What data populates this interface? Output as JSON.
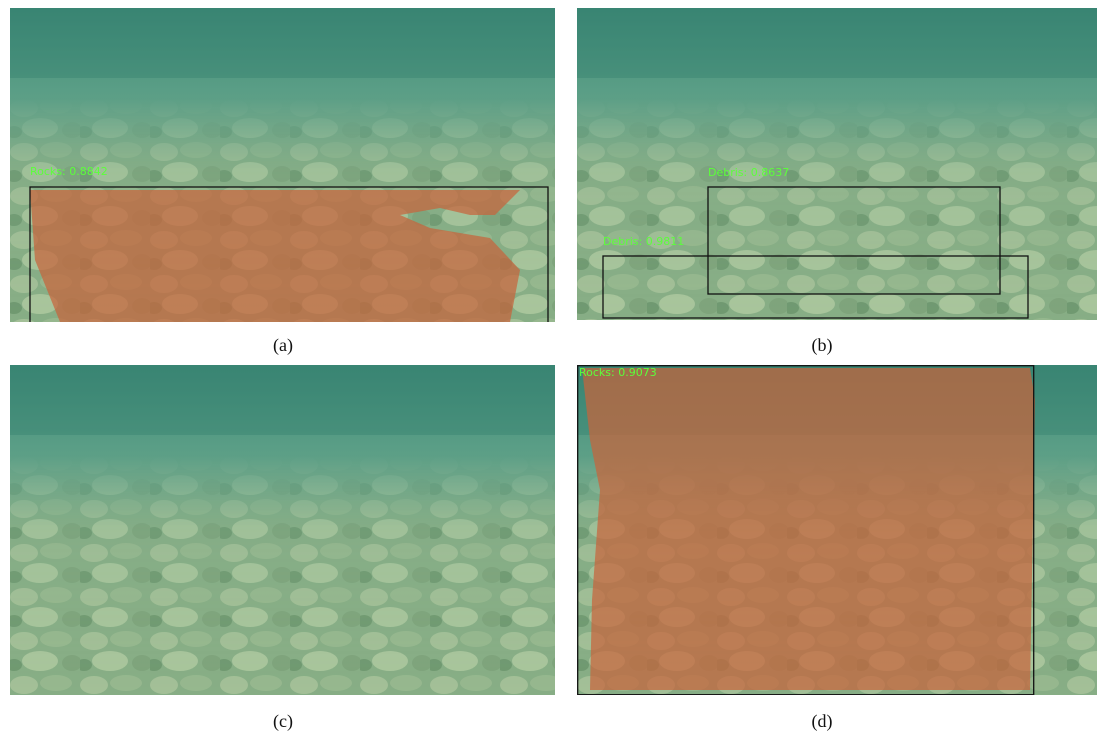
{
  "panels": [
    {
      "caption": "(a)",
      "detections": [
        {
          "label": "Rocks: 0.8842"
        }
      ]
    },
    {
      "caption": "(b)",
      "detections": [
        {
          "label": "Debris: 0.8637"
        },
        {
          "label": "Debris: 0.9811"
        }
      ]
    },
    {
      "caption": "(c)",
      "detections": []
    },
    {
      "caption": "(d)",
      "detections": [
        {
          "label": "Rocks: 0.9073"
        }
      ]
    }
  ]
}
